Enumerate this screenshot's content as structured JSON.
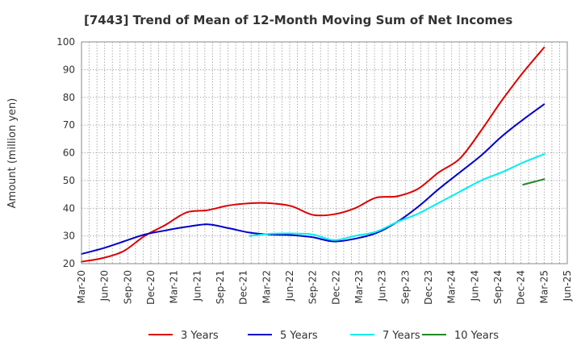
{
  "chart_data": {
    "type": "line",
    "title": "[7443]  Trend of Mean of 12-Month Moving Sum of Net Incomes",
    "xlabel": "",
    "ylabel": "Amount (million yen)",
    "ylim": [
      20,
      100
    ],
    "yticks": [
      20,
      30,
      40,
      50,
      60,
      70,
      80,
      90,
      100
    ],
    "xticks": [
      "Mar-20",
      "Jun-20",
      "Sep-20",
      "Dec-20",
      "Mar-21",
      "Jun-21",
      "Sep-21",
      "Dec-21",
      "Mar-22",
      "Jun-22",
      "Sep-22",
      "Dec-22",
      "Mar-23",
      "Jun-23",
      "Sep-23",
      "Dec-23",
      "Mar-24",
      "Jun-24",
      "Sep-24",
      "Dec-24",
      "Mar-25",
      "Jun-25"
    ],
    "grid": true,
    "legend_position": "bottom",
    "series": [
      {
        "name": "3 Years",
        "color": "#dd0000",
        "values": [
          20.7,
          22.0,
          24.5,
          30.0,
          34.0,
          38.5,
          39.3,
          41.0,
          41.8,
          41.8,
          40.7,
          37.6,
          37.8,
          40.0,
          43.8,
          44.3,
          47.0,
          53.0,
          58.0,
          68.0,
          79.0,
          89.0,
          98.0
        ]
      },
      {
        "name": "5 Years",
        "color": "#0000cc",
        "values": [
          23.5,
          25.5,
          28.0,
          30.5,
          32.0,
          33.3,
          34.2,
          32.8,
          31.2,
          30.5,
          30.3,
          29.5,
          28.0,
          29.0,
          31.0,
          35.0,
          40.5,
          47.0,
          53.0,
          59.0,
          66.0,
          72.0,
          77.5
        ]
      },
      {
        "name": "7 Years",
        "color": "#00eeee",
        "values": [
          null,
          null,
          null,
          null,
          null,
          null,
          null,
          null,
          30.0,
          30.8,
          30.9,
          30.5,
          28.5,
          30.0,
          31.5,
          35.0,
          38.0,
          42.0,
          46.0,
          50.0,
          53.0,
          56.5,
          59.5
        ]
      },
      {
        "name": "10 Years",
        "color": "#228822",
        "values": [
          null,
          null,
          null,
          null,
          null,
          null,
          null,
          null,
          null,
          null,
          null,
          null,
          null,
          null,
          null,
          null,
          null,
          null,
          null,
          null,
          null,
          48.5,
          50.5
        ]
      }
    ]
  }
}
